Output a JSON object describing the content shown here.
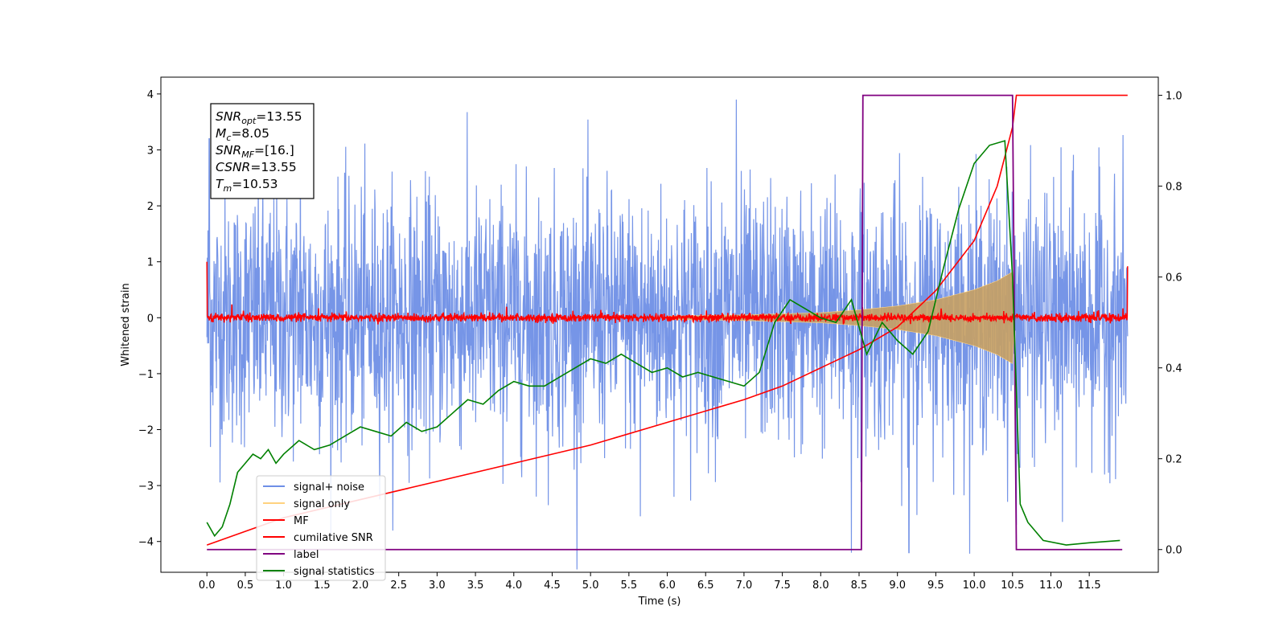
{
  "chart_data": {
    "type": "line",
    "xlabel": "Time (s)",
    "ylabel": "Whitened strain",
    "xlim": [
      -0.6,
      12.4
    ],
    "ylim": [
      -4.55,
      4.3
    ],
    "y2lim": [
      -0.05,
      1.04
    ],
    "x_ticks": [
      0.0,
      0.5,
      1.0,
      1.5,
      2.0,
      2.5,
      3.0,
      3.5,
      4.0,
      4.5,
      5.0,
      5.5,
      6.0,
      6.5,
      7.0,
      7.5,
      8.0,
      8.5,
      9.0,
      9.5,
      10.0,
      10.5,
      11.0,
      11.5
    ],
    "x_tick_labels": [
      "0.0",
      "0.5",
      "1.0",
      "1.5",
      "2.0",
      "2.5",
      "3.0",
      "3.5",
      "4.0",
      "4.5",
      "5.0",
      "5.5",
      "6.0",
      "6.5",
      "7.0",
      "7.5",
      "8.0",
      "8.5",
      "9.0",
      "9.5",
      "10.0",
      "10.5",
      "11.0",
      "11.5"
    ],
    "y_ticks": [
      -4,
      -3,
      -2,
      -1,
      0,
      1,
      2,
      3,
      4
    ],
    "y_tick_labels": [
      "−4",
      "−3",
      "−2",
      "−1",
      "0",
      "1",
      "2",
      "3",
      "4"
    ],
    "y2_ticks": [
      0.0,
      0.2,
      0.4,
      0.6,
      0.8,
      1.0
    ],
    "y2_tick_labels": [
      "0.0",
      "0.2",
      "0.4",
      "0.6",
      "0.8",
      "1.0"
    ],
    "grid": false,
    "legend_position": "lower-left",
    "annotation": [
      {
        "sym": "SNR",
        "sub": "opt",
        "val": "=13.55"
      },
      {
        "sym": "M",
        "sub": "c",
        "val": "=8.05"
      },
      {
        "sym": "SNR",
        "sub": "MF",
        "val": "=[16.]"
      },
      {
        "sym": "CSNR",
        "sub": "",
        "val": "=13.55"
      },
      {
        "sym": "T",
        "sub": "m",
        "val": "=10.53"
      }
    ],
    "series": [
      {
        "name": "signal+ noise",
        "axis": "left",
        "color": "#6f8fe6",
        "kind": "noisy",
        "time_range": [
          0.0,
          12.0
        ],
        "envelope_p98": [
          2.3,
          2.4
        ],
        "extremes": [
          [
            0.03,
            3.2
          ],
          [
            1.22,
            3.6
          ],
          [
            6.9,
            3.9
          ],
          [
            5.65,
            -3.55
          ],
          [
            8.4,
            -4.2
          ],
          [
            9.15,
            -4.2
          ],
          [
            11.15,
            -3.65
          ],
          [
            10.55,
            -3.7
          ],
          [
            4.45,
            -3.35
          ]
        ]
      },
      {
        "name": "signal only",
        "axis": "left",
        "color": "#ffd27f",
        "kind": "chirp",
        "amplitude": [
          [
            0.0,
            0.0
          ],
          [
            6.0,
            0.03
          ],
          [
            7.0,
            0.05
          ],
          [
            8.0,
            0.09
          ],
          [
            8.5,
            0.14
          ],
          [
            9.0,
            0.21
          ],
          [
            9.5,
            0.32
          ],
          [
            10.0,
            0.5
          ],
          [
            10.3,
            0.66
          ],
          [
            10.5,
            0.82
          ],
          [
            10.53,
            0.0
          ]
        ]
      },
      {
        "name": "MF",
        "axis": "left",
        "color": "#ff0000",
        "kind": "flat-noise",
        "level": 0.0,
        "noise_amp": 0.06,
        "edges": [
          [
            0.0,
            1.0
          ],
          [
            12.0,
            0.92
          ]
        ]
      },
      {
        "name": "cumilative SNR",
        "axis": "right",
        "color": "#ff0000",
        "x": [
          0.0,
          0.5,
          1.0,
          2.0,
          3.0,
          4.0,
          5.0,
          6.0,
          7.0,
          7.5,
          8.0,
          8.5,
          9.0,
          9.5,
          10.0,
          10.3,
          10.5,
          10.55,
          12.0
        ],
        "y": [
          0.01,
          0.04,
          0.07,
          0.11,
          0.15,
          0.19,
          0.23,
          0.28,
          0.33,
          0.36,
          0.4,
          0.44,
          0.49,
          0.57,
          0.68,
          0.8,
          0.93,
          1.0,
          1.0
        ]
      },
      {
        "name": "label",
        "axis": "right",
        "color": "#800080",
        "x": [
          0.0,
          8.53,
          8.55,
          10.5,
          10.55,
          11.93
        ],
        "y": [
          0.0,
          0.0,
          1.0,
          1.0,
          0.0,
          0.0
        ]
      },
      {
        "name": "signal statistics",
        "axis": "right",
        "color": "#008000",
        "x": [
          0.0,
          0.1,
          0.2,
          0.3,
          0.4,
          0.5,
          0.6,
          0.7,
          0.8,
          0.9,
          1.0,
          1.2,
          1.4,
          1.6,
          1.8,
          2.0,
          2.2,
          2.4,
          2.6,
          2.8,
          3.0,
          3.2,
          3.4,
          3.6,
          3.8,
          4.0,
          4.2,
          4.4,
          4.6,
          4.8,
          5.0,
          5.2,
          5.4,
          5.6,
          5.8,
          6.0,
          6.2,
          6.4,
          6.6,
          6.8,
          7.0,
          7.2,
          7.4,
          7.6,
          7.8,
          8.0,
          8.2,
          8.4,
          8.6,
          8.8,
          9.0,
          9.2,
          9.4,
          9.6,
          9.8,
          10.0,
          10.2,
          10.4,
          10.5,
          10.6,
          10.7,
          10.9,
          11.2,
          11.5,
          11.9
        ],
        "y": [
          0.06,
          0.03,
          0.05,
          0.1,
          0.17,
          0.19,
          0.21,
          0.2,
          0.22,
          0.19,
          0.21,
          0.24,
          0.22,
          0.23,
          0.25,
          0.27,
          0.26,
          0.25,
          0.28,
          0.26,
          0.27,
          0.3,
          0.33,
          0.32,
          0.35,
          0.37,
          0.36,
          0.36,
          0.38,
          0.4,
          0.42,
          0.41,
          0.43,
          0.41,
          0.39,
          0.4,
          0.38,
          0.39,
          0.38,
          0.37,
          0.36,
          0.39,
          0.5,
          0.55,
          0.53,
          0.51,
          0.5,
          0.55,
          0.43,
          0.5,
          0.46,
          0.43,
          0.48,
          0.62,
          0.75,
          0.85,
          0.89,
          0.9,
          0.6,
          0.1,
          0.06,
          0.02,
          0.01,
          0.015,
          0.02
        ]
      }
    ]
  }
}
